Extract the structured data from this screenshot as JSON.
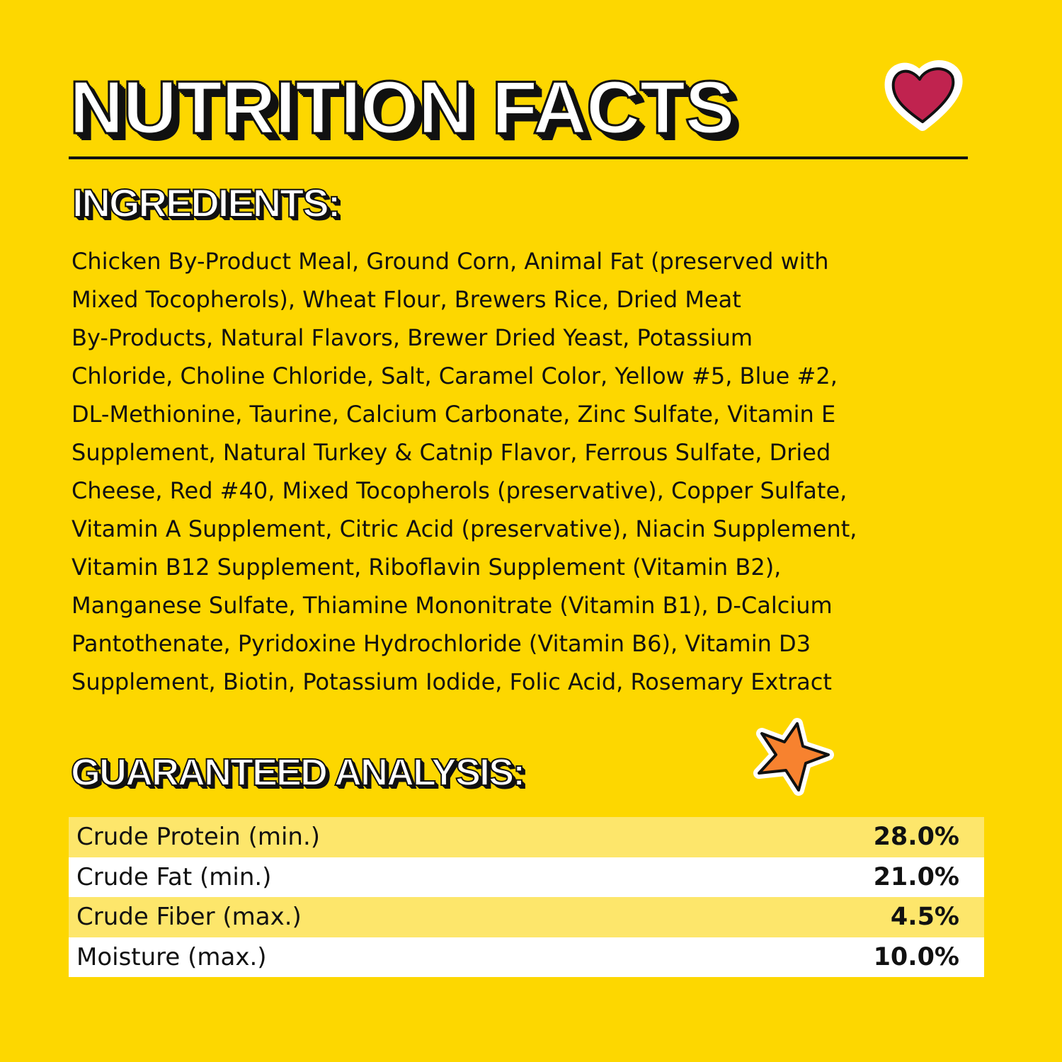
{
  "title": "NUTRITION FACTS",
  "ingredients": {
    "heading": "INGREDIENTS:",
    "lines": [
      "Chicken By-Product Meal, Ground Corn, Animal Fat (preserved with",
      "Mixed Tocopherols), Wheat Flour, Brewers Rice, Dried Meat",
      "By-Products, Natural Flavors, Brewer Dried Yeast, Potassium",
      "Chloride, Choline Chloride, Salt, Caramel Color, Yellow #5, Blue #2,",
      "DL-Methionine, Taurine, Calcium Carbonate, Zinc Sulfate, Vitamin E",
      "Supplement, Natural Turkey & Catnip Flavor, Ferrous Sulfate, Dried",
      "Cheese, Red #40, Mixed Tocopherols (preservative), Copper Sulfate,",
      "Vitamin A Supplement, Citric Acid (preservative), Niacin Supplement,",
      "Vitamin B12 Supplement, Riboflavin Supplement (Vitamin B2),",
      "Manganese Sulfate, Thiamine Mononitrate (Vitamin B1), D-Calcium",
      "Pantothenate, Pyridoxine Hydrochloride (Vitamin B6), Vitamin D3",
      "Supplement, Biotin, Potassium Iodide, Folic Acid, Rosemary Extract"
    ]
  },
  "analysis": {
    "heading": "GUARANTEED ANALYSIS:",
    "rows": [
      {
        "label": "Crude Protein (min.)",
        "value": "28.0%"
      },
      {
        "label": "Crude Fat (min.)",
        "value": "21.0%"
      },
      {
        "label": "Crude Fiber (max.)",
        "value": "4.5%"
      },
      {
        "label": "Moisture (max.)",
        "value": "10.0%"
      }
    ]
  },
  "decorations": {
    "heart": "heart-icon",
    "star": "star-icon"
  },
  "colors": {
    "background": "#FDD700",
    "row_highlight": "#FDE66B",
    "heart": "#C0234F",
    "star": "#F7822F"
  }
}
